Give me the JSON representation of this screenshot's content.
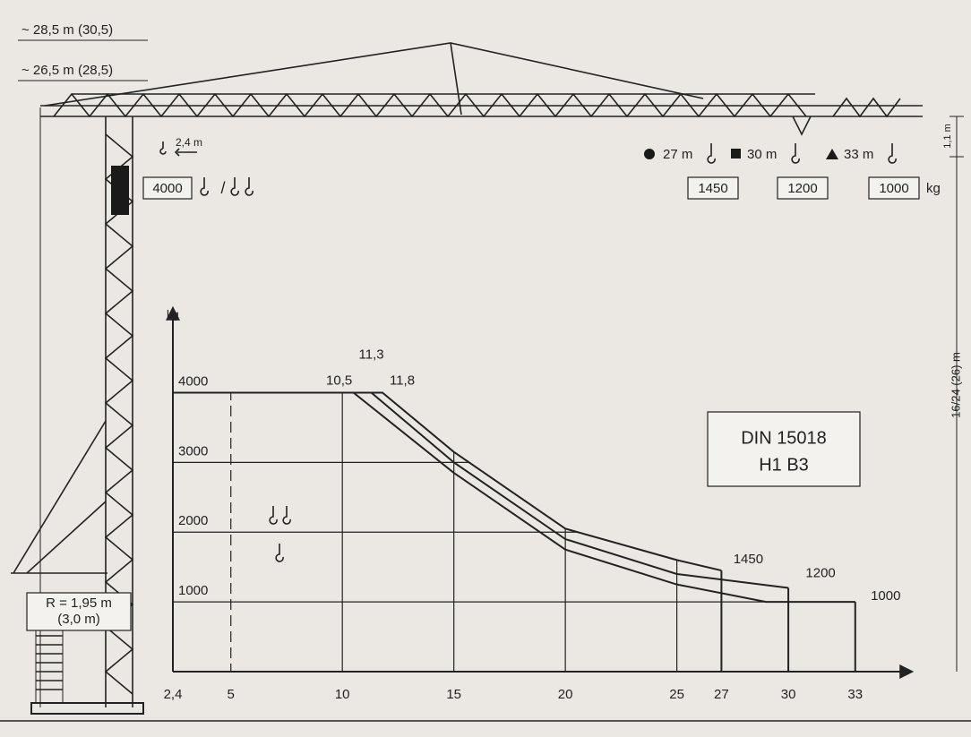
{
  "labels": {
    "height_1": "~ 28,5 m (30,5)",
    "height_2": "~ 26,5 m (28,5)",
    "offset": "2,4 m",
    "max_load": "4000",
    "slash": "/",
    "jib_27": "27 m",
    "jib_30": "30 m",
    "jib_33": "33 m",
    "load_27": "1450",
    "load_30": "1200",
    "load_33": "1000",
    "load_unit": "kg",
    "hook_height": "1,1 m",
    "tower_height": "16/24 (26) m",
    "radius": "R = 1,95 m",
    "radius_alt": "(3,0 m)",
    "standard": "DIN 15018",
    "class": "H1 B3"
  },
  "chart_data": {
    "type": "line",
    "y_label": "kg",
    "xlim": [
      2.4,
      35.5
    ],
    "ylim": [
      0,
      5200
    ],
    "xticks": [
      {
        "value": 2.4,
        "label": "2,4"
      },
      5,
      10,
      15,
      20,
      25,
      27,
      30,
      33
    ],
    "yticks": [
      1000,
      2000,
      3000,
      4000
    ],
    "series": [
      {
        "color": "#222222",
        "x": [
          2.4,
          11.8,
          15,
          20,
          25,
          27
        ],
        "values": [
          4000,
          4000,
          3150,
          2050,
          1600,
          1450
        ]
      },
      {
        "color": "#222222",
        "x": [
          2.4,
          11.3,
          15,
          20,
          25,
          30
        ],
        "values": [
          4000,
          4000,
          3000,
          1900,
          1400,
          1200
        ]
      },
      {
        "color": "#222222",
        "x": [
          2.4,
          10.5,
          15,
          20,
          25,
          29,
          33
        ],
        "values": [
          4000,
          4000,
          2850,
          1750,
          1250,
          1000,
          1000
        ]
      }
    ],
    "annotations": [
      {
        "x": 10.5,
        "y": 4000,
        "text": "10,5"
      },
      {
        "x": 11.3,
        "y": 4000,
        "text": "11,3"
      },
      {
        "x": 11.8,
        "y": 4000,
        "text": "11,8"
      },
      {
        "x": 27,
        "y": 1450,
        "text": "1450"
      },
      {
        "x": 30,
        "y": 1200,
        "text": "1200"
      },
      {
        "x": 33,
        "y": 1000,
        "text": "1000"
      }
    ]
  }
}
